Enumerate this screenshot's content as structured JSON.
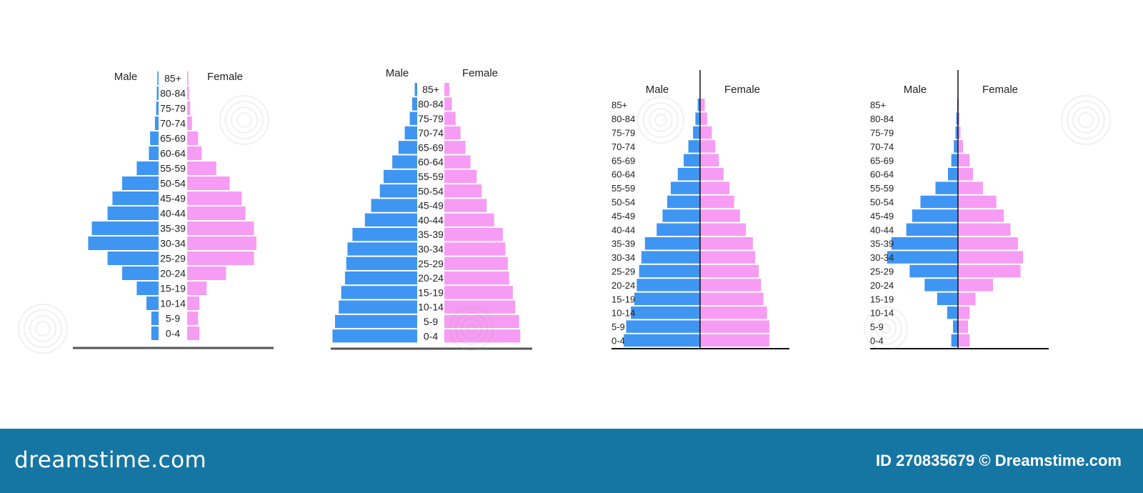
{
  "footer": {
    "brand_left": "dreamstime.com",
    "brand_right": "ID 270835679 © Dreamstime.com"
  },
  "colors": {
    "male": "#3f95f2",
    "female": "#f79cf4",
    "axis": "#555555",
    "text": "#222222"
  },
  "chart_data": [
    {
      "type": "bar",
      "layout": "population-pyramid",
      "legend": {
        "male": "Male",
        "female": "Female"
      },
      "categories": [
        "85+",
        "80-84",
        "75-79",
        "70-74",
        "65-69",
        "60-64",
        "55-59",
        "50-54",
        "45-49",
        "40-44",
        "35-39",
        "30-34",
        "25-29",
        "20-24",
        "15-19",
        "10-14",
        "5-9",
        "0-4"
      ],
      "series": [
        {
          "name": "Male",
          "values": [
            1,
            1.5,
            2,
            3,
            7,
            8,
            18,
            30,
            38,
            42,
            55,
            58,
            42,
            30,
            18,
            10,
            6,
            6
          ]
        },
        {
          "name": "Female",
          "values": [
            1,
            1.5,
            2.5,
            4,
            9,
            12,
            24,
            35,
            45,
            48,
            55,
            57,
            55,
            32,
            16,
            10,
            9,
            10
          ]
        }
      ],
      "ylim": [
        0,
        60
      ],
      "grid": false
    },
    {
      "type": "bar",
      "layout": "population-pyramid",
      "legend": {
        "male": "Male",
        "female": "Female"
      },
      "categories": [
        "85+",
        "80-84",
        "75-79",
        "70-74",
        "65-69",
        "60-64",
        "55-59",
        "50-54",
        "45-49",
        "40-44",
        "35-39",
        "30-34",
        "25-29",
        "20-24",
        "15-19",
        "10-14",
        "5-9",
        "0-4"
      ],
      "series": [
        {
          "name": "Male",
          "values": [
            2,
            4,
            6,
            10,
            15,
            20,
            27,
            30,
            37,
            42,
            52,
            56,
            57,
            58,
            61,
            63,
            66,
            68
          ]
        },
        {
          "name": "Female",
          "values": [
            4,
            6,
            9,
            13,
            17,
            21,
            26,
            30,
            34,
            40,
            47,
            49,
            51,
            52,
            55,
            57,
            60,
            61
          ]
        }
      ],
      "ylim": [
        0,
        70
      ],
      "grid": false
    },
    {
      "type": "bar",
      "layout": "population-pyramid",
      "legend": {
        "male": "Male",
        "female": "Female"
      },
      "categories": [
        "85+",
        "80-84",
        "75-79",
        "70-74",
        "65-69",
        "60-64",
        "55-59",
        "50-54",
        "45-49",
        "40-44",
        "35-39",
        "30-34",
        "25-29",
        "20-24",
        "15-19",
        "10-14",
        "5-9",
        "0-4"
      ],
      "series": [
        {
          "name": "Male",
          "values": [
            2,
            4,
            6,
            10,
            14,
            19,
            25,
            28,
            32,
            37,
            47,
            50,
            52,
            54,
            56,
            59,
            63,
            65
          ]
        },
        {
          "name": "Female",
          "values": [
            4,
            6,
            10,
            13,
            16,
            20,
            25,
            29,
            34,
            39,
            45,
            47,
            50,
            52,
            54,
            57,
            59,
            59
          ]
        }
      ],
      "ylim": [
        0,
        70
      ],
      "grid": false
    },
    {
      "type": "bar",
      "layout": "population-pyramid",
      "legend": {
        "male": "Male",
        "female": "Female"
      },
      "categories": [
        "85+",
        "80-84",
        "75-79",
        "70-74",
        "65-69",
        "60-64",
        "55-59",
        "50-54",
        "45-49",
        "40-44",
        "35-39",
        "30-34",
        "25-29",
        "20-24",
        "15-19",
        "10-14",
        "5-9",
        "0-4"
      ],
      "series": [
        {
          "name": "Male",
          "values": [
            1,
            2,
            3,
            5,
            8,
            12,
            27,
            45,
            55,
            62,
            80,
            85,
            58,
            40,
            25,
            13,
            6,
            8
          ]
        },
        {
          "name": "Female",
          "values": [
            1,
            2,
            3,
            6,
            14,
            18,
            30,
            46,
            55,
            63,
            72,
            78,
            75,
            42,
            21,
            14,
            12,
            14
          ]
        }
      ],
      "ylim": [
        0,
        90
      ],
      "grid": false
    }
  ]
}
